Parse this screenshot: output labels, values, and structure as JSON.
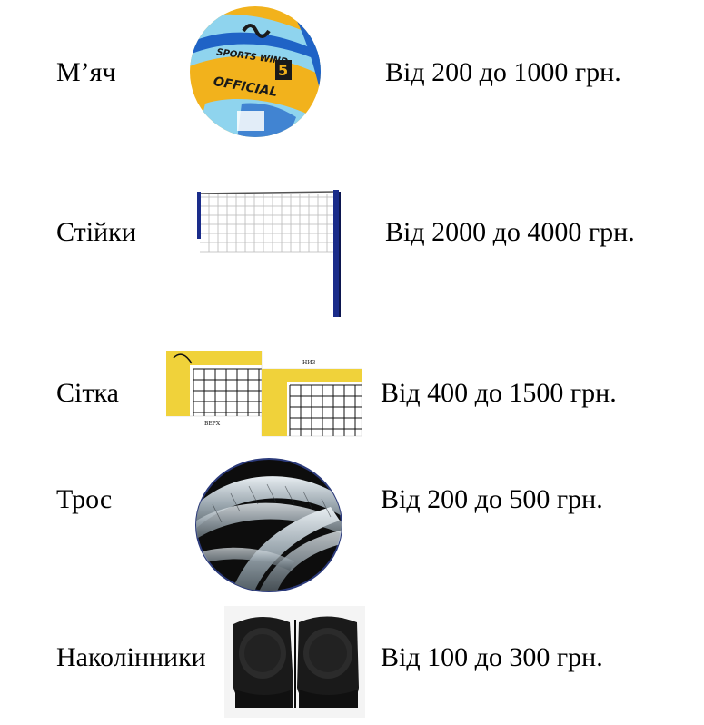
{
  "items": [
    {
      "label": "М’яч",
      "price": "Від 200 до 1000 грн."
    },
    {
      "label": "Стійки",
      "price": "Від 2000 до 4000 грн."
    },
    {
      "label": "Сітка",
      "price": "Від 400 до 1500 грн."
    },
    {
      "label": "Трос",
      "price": "Від 200 до 500 грн."
    },
    {
      "label": "Наколінники",
      "price": "Від 100 до 300 грн."
    }
  ],
  "images": {
    "ball_text_1": "SPORTS WIND",
    "ball_text_2": "OFFICIAL",
    "ball_text_3": "5",
    "mesh_top": "НИЗ",
    "mesh_bottom": "ВЕРХ"
  },
  "colors": {
    "ball_yellow": "#f2b21c",
    "ball_blue": "#1f63c6",
    "ball_light": "#8fd4ee",
    "net_pole": "#1a2c8a",
    "mesh_yellow": "#f0d23a",
    "rope_dark": "#0d0d0d",
    "pads_black": "#1a1a1a"
  }
}
